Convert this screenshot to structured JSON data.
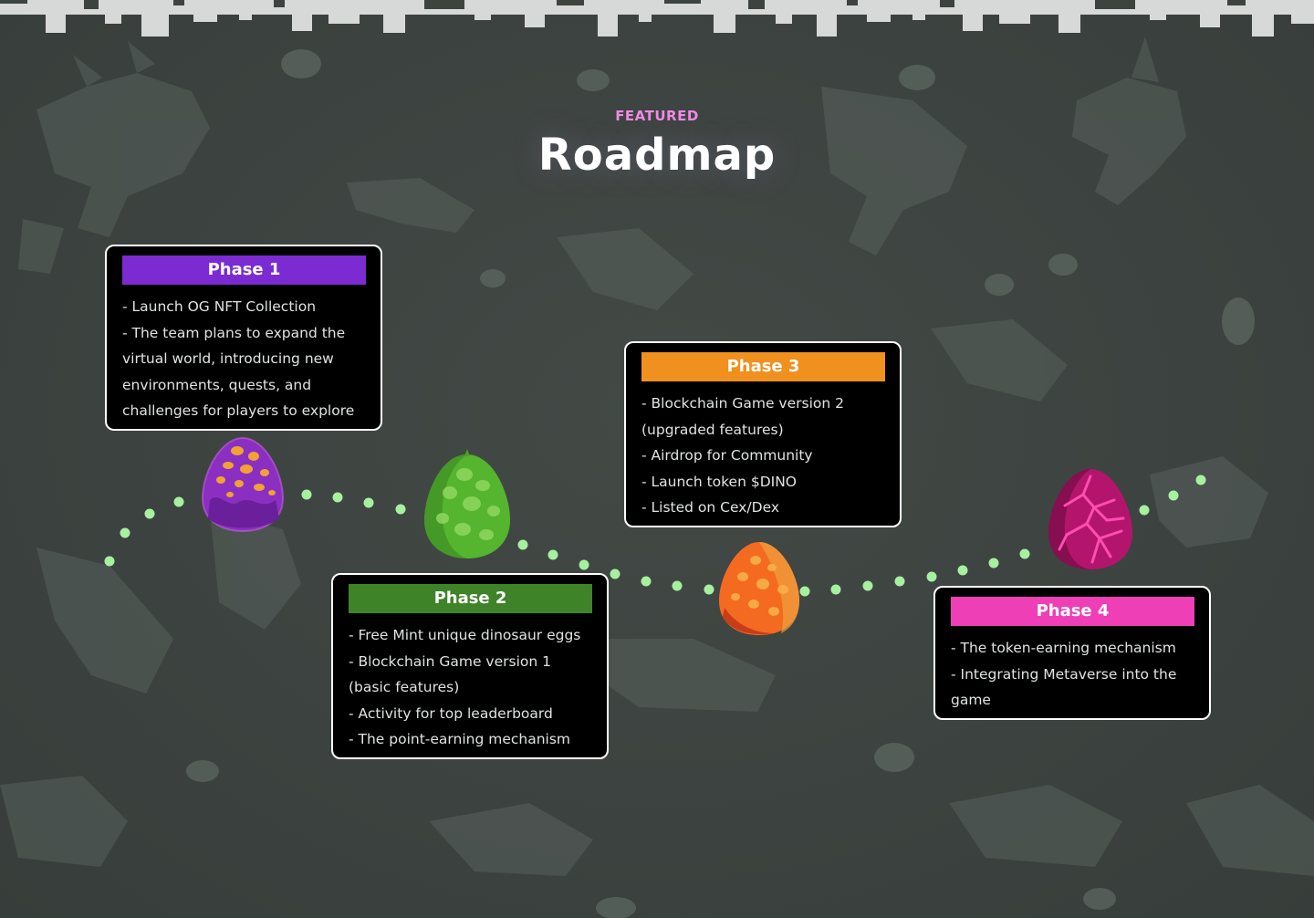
{
  "section": {
    "eyebrow": "FEATURED",
    "title": "Roadmap"
  },
  "colors": {
    "background": "#3d4440",
    "eyebrow": "#f08ae6",
    "card_background": "#000000",
    "card_border": "#ffffff",
    "path_dots": "#a7f0a0",
    "fossil_silhouettes": "#57615c",
    "pixel_border": "#d7d9d8"
  },
  "phases": [
    {
      "label": "Phase 1",
      "color": "#7b2bd1",
      "egg": "purple-spotted-egg",
      "items": [
        "- Launch OG NFT Collection",
        "- The team plans to expand the",
        "virtual world, introducing new",
        "environments, quests, and",
        "challenges for players to explore"
      ]
    },
    {
      "label": "Phase 2",
      "color": "#3f8329",
      "egg": "green-spotted-egg",
      "items": [
        "- Free Mint unique dinosaur eggs",
        "- Blockchain Game version 1",
        "(basic features)",
        "- Activity for top leaderboard",
        "- The point-earning mechanism"
      ]
    },
    {
      "label": "Phase 3",
      "color": "#f0901f",
      "egg": "orange-spotted-egg",
      "items": [
        "- Blockchain Game version 2",
        "(upgraded features)",
        "- Airdrop for Community",
        "- Launch token $DINO",
        "- Listed on Cex/Dex"
      ]
    },
    {
      "label": "Phase 4",
      "color": "#ee3fb6",
      "egg": "magenta-veined-egg",
      "items": [
        "- The token-earning mechanism",
        "- Integrating Metaverse into the",
        "game"
      ]
    }
  ]
}
